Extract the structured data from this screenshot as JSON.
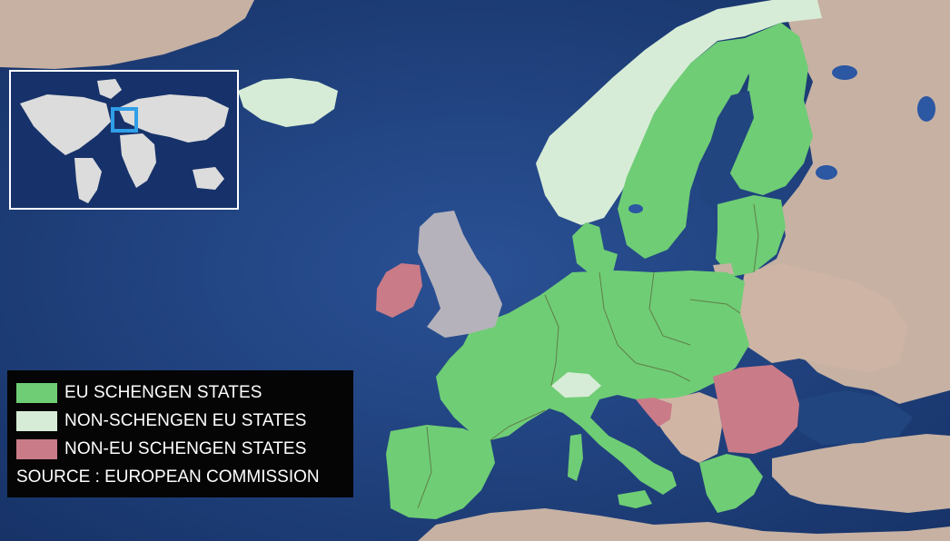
{
  "legend": {
    "items": [
      {
        "label": "EU SCHENGEN STATES",
        "color": "#6fcd75"
      },
      {
        "label": "NON-SCHENGEN EU STATES",
        "color": "#d7ecd6"
      },
      {
        "label": "NON-EU SCHENGEN STATES",
        "color": "#c97b88"
      }
    ],
    "source": "SOURCE : EUROPEAN COMMISSION"
  },
  "map_colors": {
    "sea": "#1e3f78",
    "non_eu_land": "#c6b1a3",
    "uk_land": "#b5b2bc",
    "eu_schengen": "#6fcd75",
    "non_schengen_eu": "#d7ecd6",
    "non_eu_schengen": "#c97b88",
    "inset_highlight": "#2f9fe8"
  }
}
